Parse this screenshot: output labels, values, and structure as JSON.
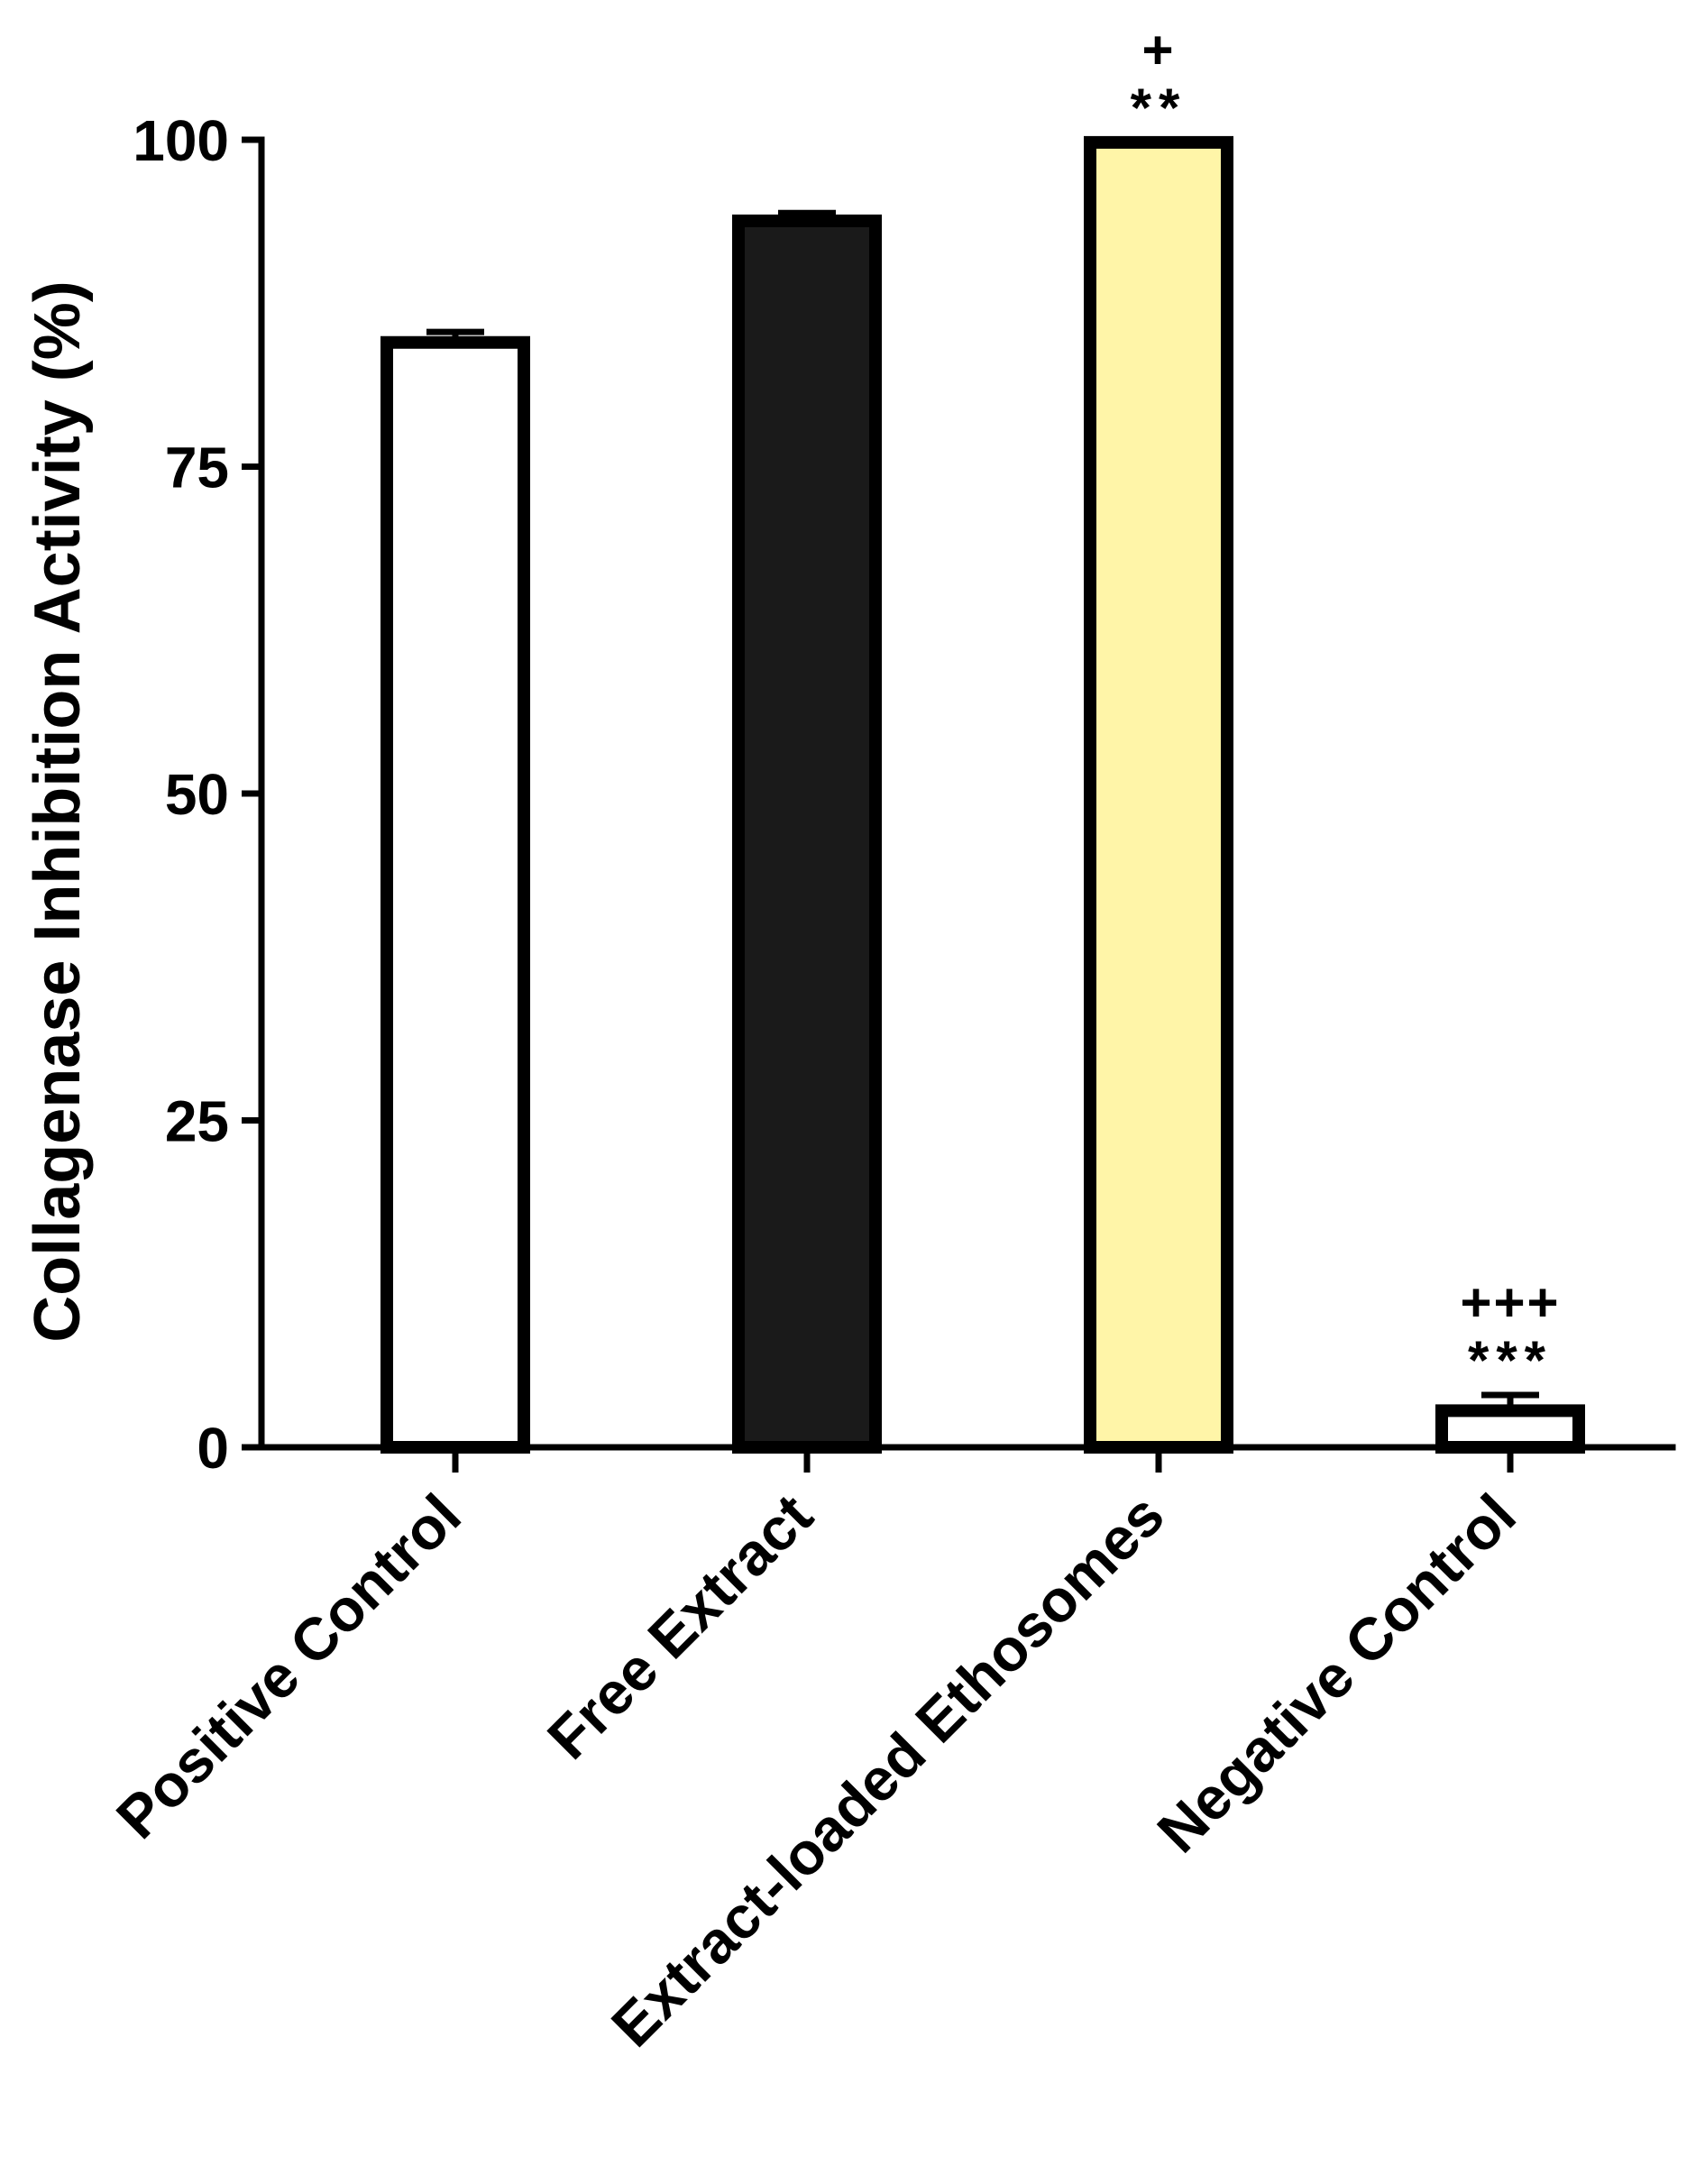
{
  "chart_data": {
    "type": "bar",
    "categories": [
      "Positive Control",
      "Free Extract",
      "Extract-loaded Ethosomes",
      "Negative Control"
    ],
    "values": [
      84.5,
      93.8,
      99.8,
      2.8
    ],
    "errors": [
      0.8,
      0.6,
      0,
      1.2
    ],
    "annotations": [
      {
        "category": "Extract-loaded Ethosomes",
        "lines": [
          "+",
          "**"
        ]
      },
      {
        "category": "Negative Control",
        "lines": [
          "+++",
          "***"
        ]
      }
    ],
    "bar_colors": [
      "#ffffff",
      "#1a1a1a",
      "#fff5a8",
      "#ffffff"
    ],
    "title": "",
    "xlabel": "",
    "ylabel": "Collagenase Inhibition Activity (%)",
    "ylim": [
      0,
      100
    ],
    "yticks": [
      0,
      25,
      50,
      75,
      100
    ],
    "ytick_labels": [
      "0",
      "25",
      "50",
      "75",
      "100"
    ],
    "grid": false
  }
}
